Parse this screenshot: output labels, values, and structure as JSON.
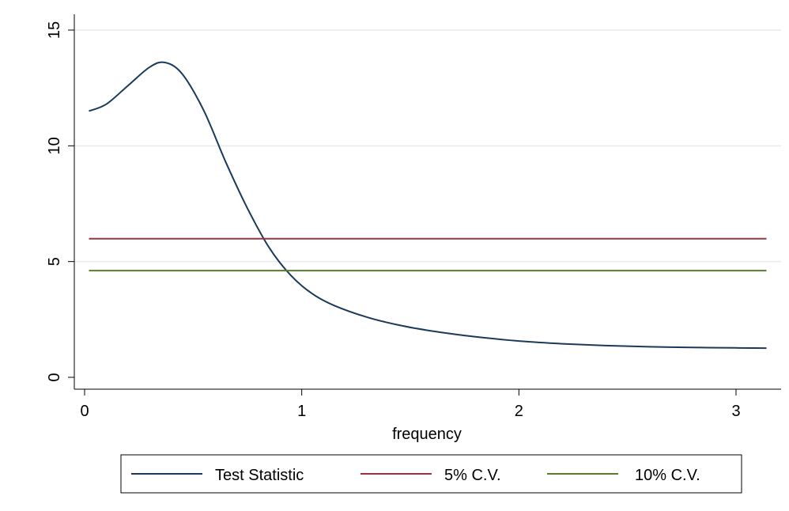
{
  "chart_data": {
    "type": "line",
    "title": "",
    "xlabel": "frequency",
    "ylabel": "",
    "xlim": [
      0,
      3.1416
    ],
    "ylim": [
      0,
      15
    ],
    "xticks": [
      0,
      1,
      2,
      3
    ],
    "yticks": [
      0,
      5,
      10,
      15
    ],
    "grid": "horizontal",
    "legend_position": "bottom",
    "series": [
      {
        "name": "Test Statistic",
        "color": "#1a3a5c",
        "x": [
          0.02,
          0.1,
          0.2,
          0.3,
          0.37,
          0.45,
          0.55,
          0.65,
          0.75,
          0.85,
          0.95,
          1.05,
          1.15,
          1.3,
          1.45,
          1.6,
          1.8,
          2.0,
          2.2,
          2.4,
          2.6,
          2.8,
          3.0,
          3.14
        ],
        "y": [
          11.5,
          11.8,
          12.6,
          13.4,
          13.6,
          13.1,
          11.5,
          9.3,
          7.3,
          5.6,
          4.4,
          3.6,
          3.1,
          2.6,
          2.25,
          2.0,
          1.75,
          1.57,
          1.45,
          1.37,
          1.32,
          1.29,
          1.27,
          1.26
        ]
      },
      {
        "name": "5% C.V.",
        "color": "#953540",
        "x": [
          0.02,
          3.14
        ],
        "y": [
          5.99,
          5.99
        ]
      },
      {
        "name": "10% C.V.",
        "color": "#5a7a2e",
        "x": [
          0.02,
          3.14
        ],
        "y": [
          4.61,
          4.61
        ]
      }
    ]
  }
}
